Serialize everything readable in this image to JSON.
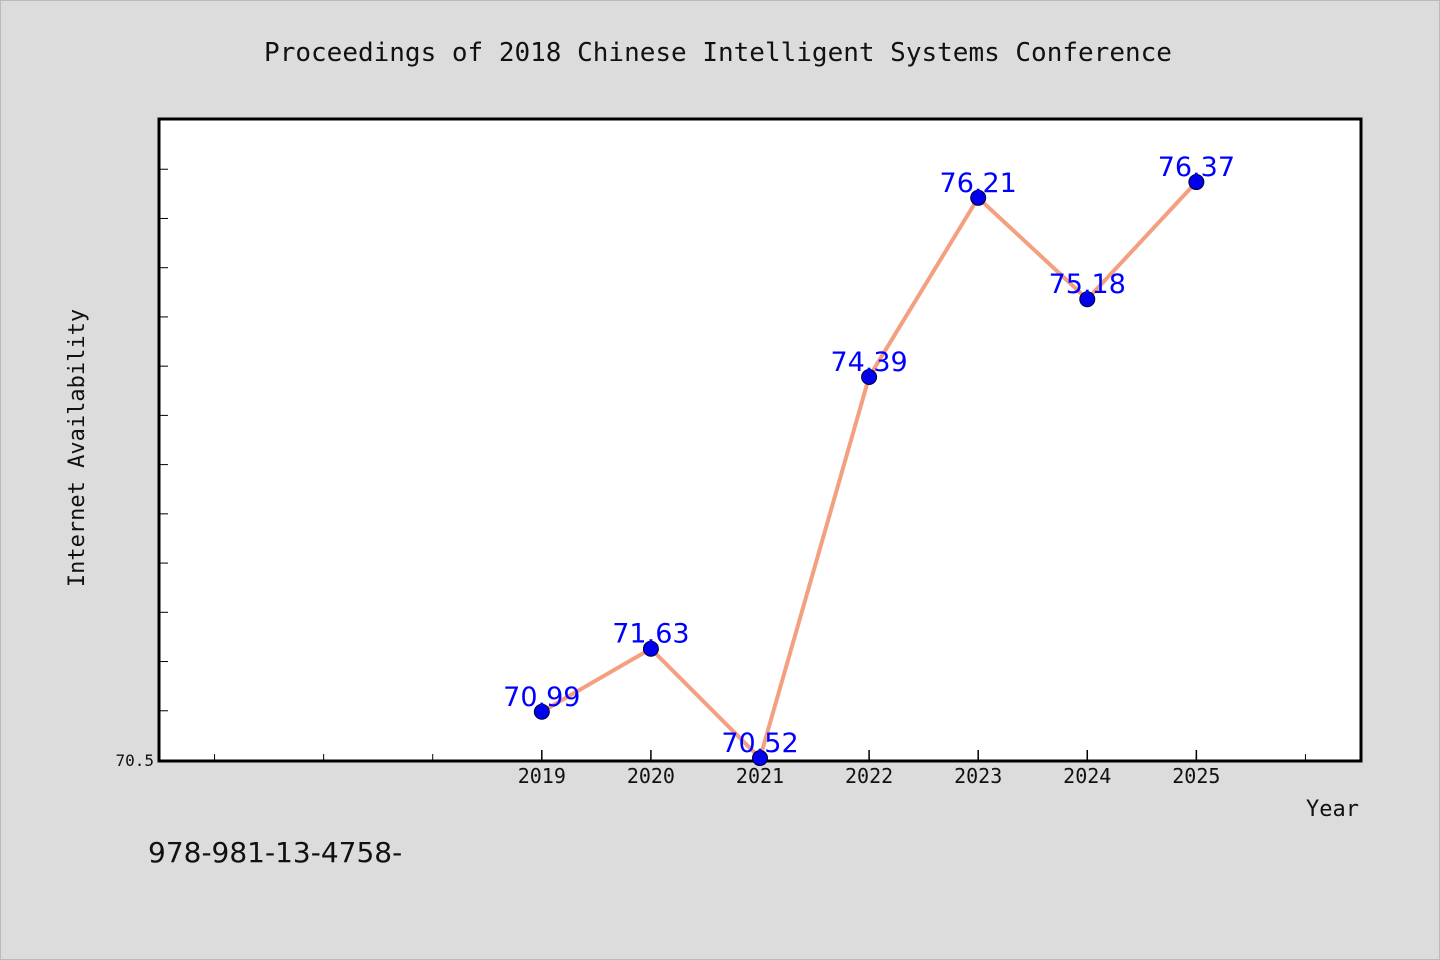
{
  "footer": {
    "isbn_text": "978-981-13-4758-"
  },
  "colors": {
    "line": "#f4a080",
    "marker": "#0000ee",
    "label": "#0000ff",
    "plot_bg": "#ffffff",
    "page_bg": "#dcdcdc"
  },
  "chart_data": {
    "type": "line",
    "title": "Proceedings of 2018 Chinese Intelligent Systems Conference",
    "xlabel": "Year",
    "ylabel": "Internet Availability",
    "x": [
      "2019",
      "2020",
      "2021",
      "2022",
      "2023",
      "2024",
      "2025"
    ],
    "series": [
      {
        "values": [
          70.99,
          71.63,
          70.52,
          74.39,
          76.21,
          75.18,
          76.37
        ]
      }
    ],
    "data_labels": [
      "70.99",
      "71.63",
      "70.52",
      "74.39",
      "76.21",
      "75.18",
      "76.37"
    ],
    "yticks": [
      70.5
    ],
    "ylim": [
      70.5,
      77.0
    ],
    "xlim": [
      2015.5,
      2026.5
    ],
    "grid": false,
    "legend": "none"
  }
}
